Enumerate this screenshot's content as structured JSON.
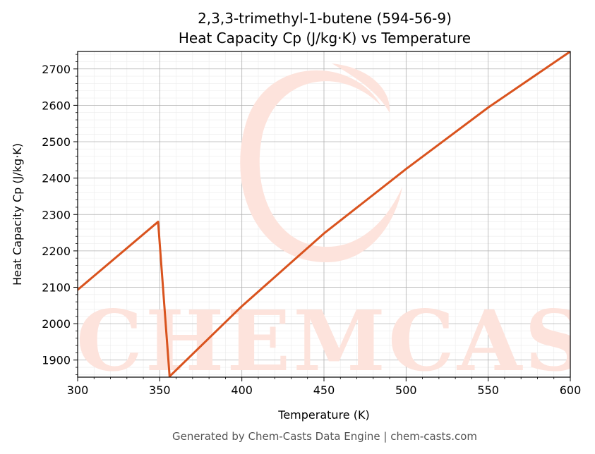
{
  "header": {
    "title_line1": "2,3,3-trimethyl-1-butene (594-56-9)",
    "title_line2": "Heat Capacity Cp (J/kg·K) vs Temperature"
  },
  "footer": {
    "credit": "Generated by Chem-Casts Data Engine | chem-casts.com"
  },
  "watermark": {
    "text": "CHEMCASTS",
    "color": "#fde3dc"
  },
  "chart_data": {
    "type": "line",
    "title": "2,3,3-trimethyl-1-butene (594-56-9)\nHeat Capacity Cp (J/kg·K) vs Temperature",
    "xlabel": "Temperature (K)",
    "ylabel": "Heat Capacity Cp (J/kg·K)",
    "xlim": [
      300,
      600
    ],
    "ylim": [
      1853,
      2748
    ],
    "x_ticks": [
      300,
      350,
      400,
      450,
      500,
      550,
      600
    ],
    "y_ticks": [
      1900,
      2000,
      2100,
      2200,
      2300,
      2400,
      2500,
      2600,
      2700
    ],
    "grid": true,
    "legend": "none",
    "series": [
      {
        "color": "#d9531e",
        "points": [
          [
            300,
            2093
          ],
          [
            349,
            2280
          ],
          [
            356,
            1855
          ],
          [
            400,
            2048
          ],
          [
            450,
            2248
          ],
          [
            500,
            2425
          ],
          [
            550,
            2594
          ],
          [
            600,
            2748
          ]
        ]
      }
    ]
  }
}
